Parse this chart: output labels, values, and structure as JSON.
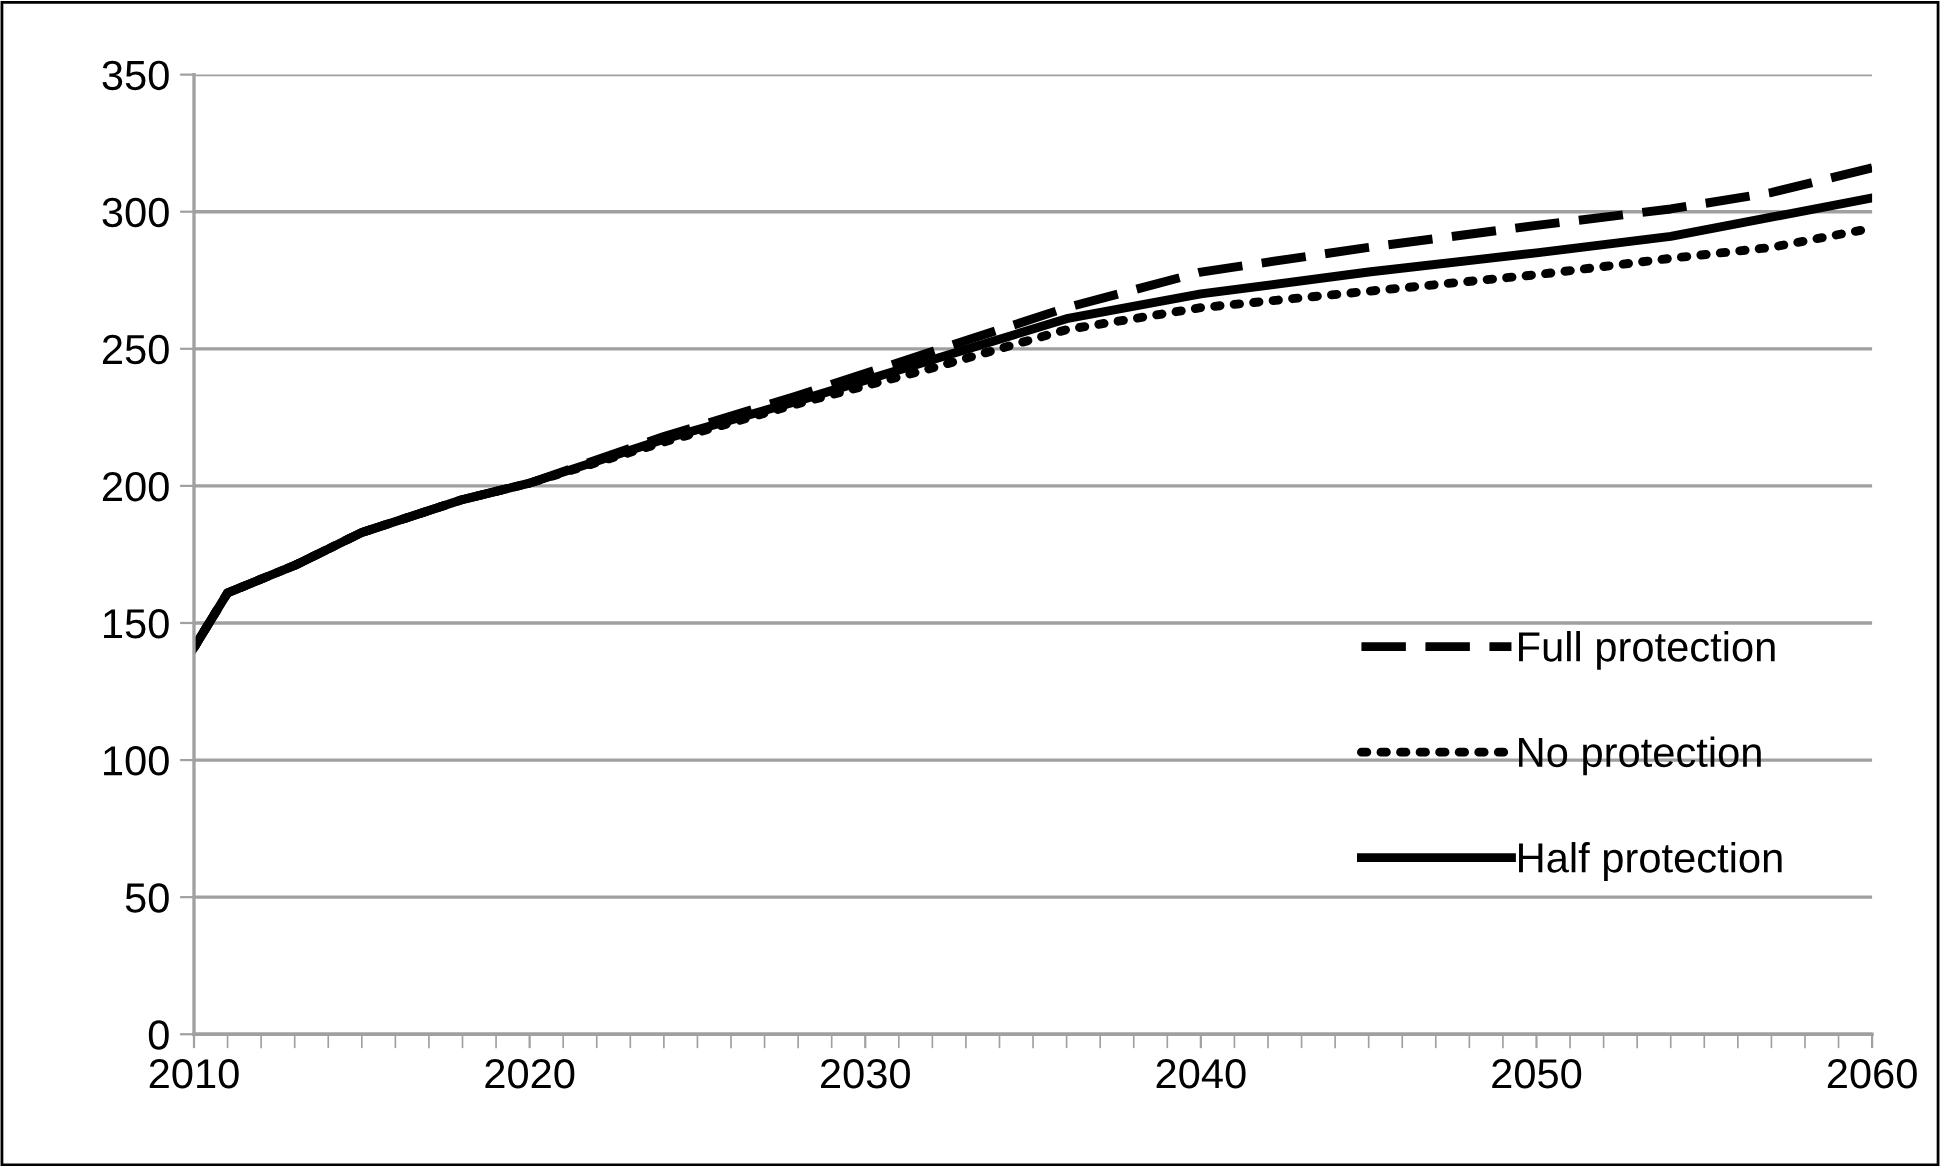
{
  "chart_data": {
    "type": "line",
    "x": [
      2010,
      2011,
      2013,
      2015,
      2018,
      2020,
      2024,
      2028,
      2032,
      2036,
      2040,
      2045,
      2050,
      2054,
      2057,
      2060
    ],
    "series": [
      {
        "name": "Full protection",
        "color": "#000000",
        "line_style": "dashed",
        "values": [
          141,
          161,
          171,
          183,
          195,
          201,
          218,
          233,
          249,
          265,
          278,
          287,
          295,
          301,
          307,
          316
        ]
      },
      {
        "name": "No protection",
        "color": "#000000",
        "line_style": "dotted",
        "values": [
          141,
          161,
          171,
          183,
          195,
          201,
          216,
          230,
          243,
          257,
          265,
          271,
          277,
          283,
          287,
          294
        ]
      },
      {
        "name": "Half protection",
        "color": "#000000",
        "line_style": "solid",
        "values": [
          141,
          161,
          171,
          183,
          195,
          201,
          217,
          231,
          246,
          261,
          270,
          278,
          285,
          291,
          298,
          305
        ]
      }
    ],
    "xlim": [
      2010,
      2060
    ],
    "xticks": [
      2010,
      2020,
      2030,
      2040,
      2050,
      2060
    ],
    "ylim": [
      0,
      350
    ],
    "yticks": [
      0,
      50,
      100,
      150,
      200,
      250,
      300,
      350
    ],
    "grid": "y",
    "legend": "right",
    "marker": "none"
  }
}
